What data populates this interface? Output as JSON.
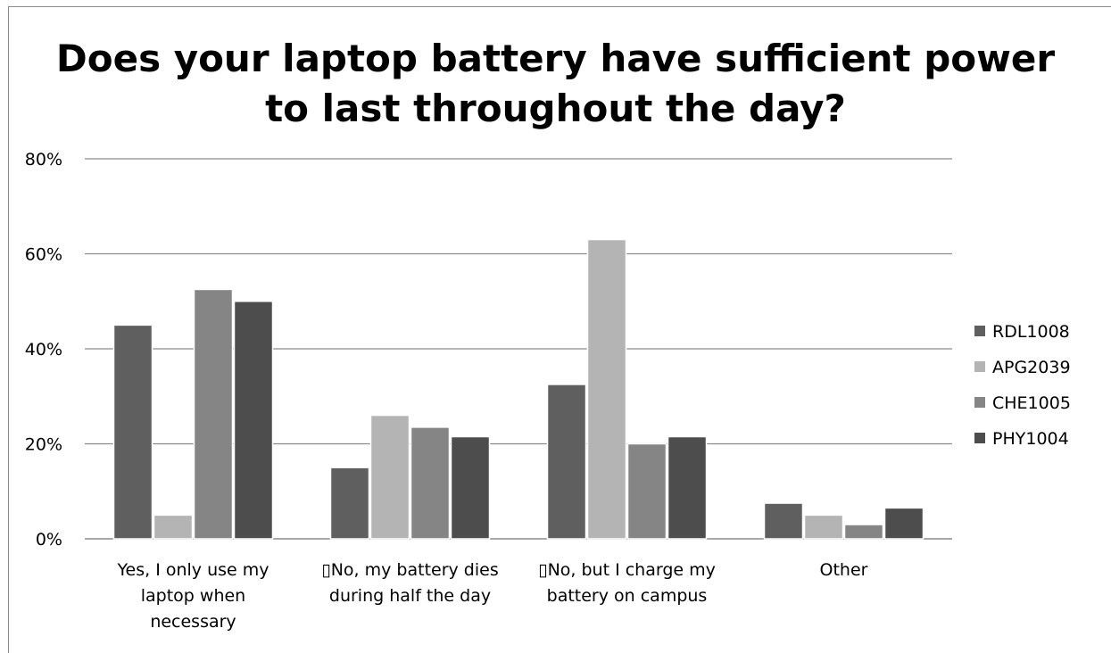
{
  "chart_data": {
    "type": "bar",
    "title_lines": [
      "Does your laptop battery have sufficient power",
      "to last throughout the day?"
    ],
    "categories": [
      [
        "Yes, I only use my",
        "laptop when",
        "necessary"
      ],
      [
        "▯No, my battery dies",
        "during half the day"
      ],
      [
        "▯No, but I charge my",
        "battery on campus"
      ],
      [
        "Other"
      ]
    ],
    "series": [
      {
        "name": "RDL1008",
        "color": "#5f5f5f",
        "values": [
          45,
          15,
          32.5,
          7.5
        ]
      },
      {
        "name": "APG2039",
        "color": "#b4b4b4",
        "values": [
          5,
          26,
          63,
          5
        ]
      },
      {
        "name": "CHE1005",
        "color": "#858585",
        "values": [
          52.5,
          23.5,
          20,
          3
        ]
      },
      {
        "name": " PHY1004",
        "color": "#4d4d4d",
        "values": [
          50,
          21.5,
          21.5,
          6.5
        ]
      }
    ],
    "ylim": [
      0,
      80
    ],
    "yticks": [
      "0%",
      "20%",
      "40%",
      "60%",
      "80%"
    ],
    "ytick_values": [
      0,
      20,
      40,
      60,
      80
    ],
    "grid": true,
    "legend_position": "right"
  }
}
